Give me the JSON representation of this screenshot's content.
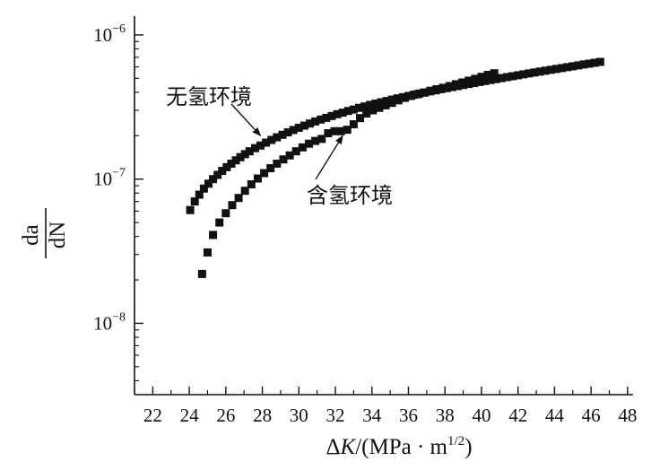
{
  "chart_data": {
    "type": "scatter",
    "title": "",
    "xlabel": {
      "delta": "Δ",
      "var": "K",
      "unit": "/(MPa · m",
      "exp": "1/2",
      "close": ")"
    },
    "ylabel": {
      "numerator": "da",
      "denominator": "dN"
    },
    "xlim": [
      21,
      48.3
    ],
    "ylim": [
      3.2e-09,
      1.35e-06
    ],
    "y_scale": "log",
    "x_ticks": [
      22,
      24,
      26,
      28,
      30,
      32,
      34,
      36,
      38,
      40,
      42,
      44,
      46,
      48
    ],
    "y_ticks": [
      {
        "value": 1e-08,
        "base": "10",
        "exp": "−8"
      },
      {
        "value": 1e-07,
        "base": "10",
        "exp": "−7"
      },
      {
        "value": 1e-06,
        "base": "10",
        "exp": "−6"
      }
    ],
    "grid": false,
    "marker": "square",
    "series": [
      {
        "name": "无氢环境",
        "x": [
          24.05,
          24.3,
          24.55,
          24.8,
          25.05,
          25.3,
          25.55,
          25.8,
          26.05,
          26.3,
          26.55,
          26.8,
          27.05,
          27.3,
          27.6,
          27.9,
          28.2,
          28.5,
          28.8,
          29.1,
          29.4,
          29.7,
          30.0,
          30.3,
          30.6,
          30.9,
          31.2,
          31.5,
          31.8,
          32.1,
          32.4,
          32.7,
          33.0,
          33.3,
          33.6,
          33.9,
          34.2,
          34.5,
          34.8,
          35.1,
          35.4,
          35.7,
          36.0,
          36.3,
          36.6,
          36.9,
          37.2,
          37.5,
          37.8,
          38.1,
          38.4,
          38.7,
          39.0,
          39.3,
          39.6,
          39.9,
          40.2,
          40.5,
          40.8,
          41.1,
          41.4,
          41.7,
          42.0,
          42.3,
          42.6,
          42.9,
          43.2,
          43.5,
          43.8,
          44.1,
          44.4,
          44.7,
          45.0,
          45.3,
          45.6,
          45.9,
          46.2,
          46.5
        ],
        "y": [
          6.1e-08,
          7e-08,
          7.8e-08,
          8.6e-08,
          9.3e-08,
          1e-07,
          1.07e-07,
          1.14e-07,
          1.21e-07,
          1.28e-07,
          1.35e-07,
          1.42e-07,
          1.49e-07,
          1.56e-07,
          1.64e-07,
          1.71e-07,
          1.79e-07,
          1.87e-07,
          1.95e-07,
          2.03e-07,
          2.11e-07,
          2.19e-07,
          2.27e-07,
          2.35e-07,
          2.43e-07,
          2.51e-07,
          2.59e-07,
          2.66e-07,
          2.74e-07,
          2.82e-07,
          2.89e-07,
          2.97e-07,
          3.04e-07,
          3.12e-07,
          3.19e-07,
          3.27e-07,
          3.34e-07,
          3.41e-07,
          3.48e-07,
          3.56e-07,
          3.63e-07,
          3.7e-07,
          3.77e-07,
          3.85e-07,
          3.92e-07,
          3.99e-07,
          4.06e-07,
          4.13e-07,
          4.21e-07,
          4.28e-07,
          4.35e-07,
          4.42e-07,
          4.5e-07,
          4.57e-07,
          4.64e-07,
          4.72e-07,
          4.79e-07,
          4.87e-07,
          4.94e-07,
          5.02e-07,
          5.1e-07,
          5.17e-07,
          5.25e-07,
          5.33e-07,
          5.41e-07,
          5.49e-07,
          5.57e-07,
          5.65e-07,
          5.73e-07,
          5.81e-07,
          5.89e-07,
          5.98e-07,
          6.06e-07,
          6.15e-07,
          6.24e-07,
          6.32e-07,
          6.41e-07,
          6.5e-07
        ]
      },
      {
        "name": "含氢环境",
        "x": [
          24.7,
          25.0,
          25.3,
          25.65,
          26.0,
          26.35,
          26.7,
          27.05,
          27.4,
          27.75,
          28.1,
          28.45,
          28.8,
          29.15,
          29.5,
          29.85,
          30.2,
          30.55,
          30.9,
          31.25,
          31.6,
          31.95,
          32.3,
          32.65,
          33.0,
          33.35,
          33.7,
          34.05,
          34.4,
          34.75,
          35.1,
          35.45,
          35.8,
          36.15,
          36.5,
          36.85,
          37.2,
          37.55,
          37.9,
          38.25,
          38.6,
          38.95,
          39.3,
          39.65,
          40.0,
          40.35,
          40.7
        ],
        "y": [
          2.2e-08,
          3.1e-08,
          4.1e-08,
          5e-08,
          5.8e-08,
          6.6e-08,
          7.4e-08,
          8.3e-08,
          9.2e-08,
          1.01e-07,
          1.1e-07,
          1.19e-07,
          1.28e-07,
          1.37e-07,
          1.46e-07,
          1.56e-07,
          1.66e-07,
          1.76e-07,
          1.84e-07,
          1.9e-07,
          2.08e-07,
          2.15e-07,
          2.15e-07,
          2.2e-07,
          2.4e-07,
          2.65e-07,
          2.85e-07,
          3e-07,
          3.12e-07,
          3.25e-07,
          3.38e-07,
          3.52e-07,
          3.66e-07,
          3.78e-07,
          3.88e-07,
          3.98e-07,
          4.1e-07,
          4.2e-07,
          4.3e-07,
          4.42e-07,
          4.55e-07,
          4.68e-07,
          4.82e-07,
          4.96e-07,
          5.12e-07,
          5.28e-07,
          5.42e-07
        ]
      }
    ],
    "annotations": [
      {
        "text": "无氢环境",
        "target": [
          27.9,
          2e-07
        ]
      },
      {
        "text": "含氢环境",
        "target": [
          32.4,
          2e-07
        ]
      }
    ]
  }
}
